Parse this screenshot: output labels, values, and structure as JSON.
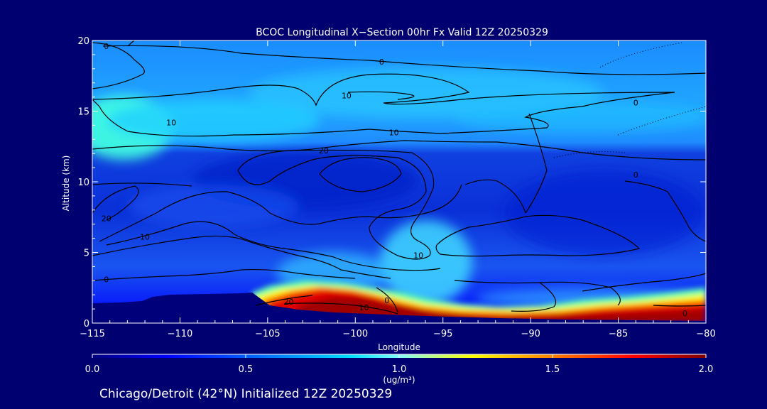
{
  "colors": {
    "background": "#000070",
    "text": "#ffffff",
    "contour": "#000000",
    "colormap": [
      "#00007f",
      "#0000ff",
      "#0080ff",
      "#00e0ff",
      "#80ffff",
      "#ffff00",
      "#ff8000",
      "#ff0000",
      "#800000"
    ]
  },
  "chart_data": {
    "type": "heatmap",
    "title": "BCOC Longitudinal X−Section 00hr  Fx Valid 12Z 20250329",
    "xlabel": "Longitude",
    "ylabel": "Altitude (km)",
    "xlim": [
      -115,
      -80
    ],
    "ylim": [
      0,
      20
    ],
    "x_ticks": [
      -115,
      -110,
      -105,
      -100,
      -95,
      -90,
      -85,
      -80
    ],
    "x_tick_labels": [
      "−115",
      "−110",
      "−105",
      "−100",
      "−95",
      "−90",
      "−85",
      "−80"
    ],
    "y_ticks": [
      0,
      5,
      10,
      15,
      20
    ],
    "y_tick_labels": [
      "0",
      "5",
      "10",
      "15",
      "20"
    ],
    "colorbar": {
      "ticks": [
        0.0,
        0.5,
        1.0,
        1.5,
        2.0
      ],
      "tick_labels": [
        "0.0",
        "0.5",
        "1.0",
        "1.5",
        "2.0"
      ],
      "units": "(ug/m³)",
      "range": [
        0,
        2
      ]
    },
    "grid": false,
    "contour_labels": [
      {
        "text": "0",
        "lon": -114.2,
        "alt": 19.6
      },
      {
        "text": "0",
        "lon": -98.5,
        "alt": 18.5
      },
      {
        "text": "10",
        "lon": -100.5,
        "alt": 16.1
      },
      {
        "text": "10",
        "lon": -110.5,
        "alt": 14.2
      },
      {
        "text": "10",
        "lon": -97.8,
        "alt": 13.5
      },
      {
        "text": "0",
        "lon": -84.0,
        "alt": 15.6
      },
      {
        "text": "20",
        "lon": -101.8,
        "alt": 12.2
      },
      {
        "text": "0",
        "lon": -84.0,
        "alt": 10.5
      },
      {
        "text": "20",
        "lon": -114.2,
        "alt": 7.4
      },
      {
        "text": "10",
        "lon": -112.0,
        "alt": 6.1
      },
      {
        "text": "10",
        "lon": -96.4,
        "alt": 4.8
      },
      {
        "text": "0",
        "lon": -114.2,
        "alt": 3.1
      },
      {
        "text": "20",
        "lon": -103.8,
        "alt": 1.5
      },
      {
        "text": "10",
        "lon": -99.5,
        "alt": 1.1
      },
      {
        "text": "0",
        "lon": -98.2,
        "alt": 1.6
      },
      {
        "text": "0",
        "lon": -81.2,
        "alt": 0.7
      }
    ]
  },
  "footer": {
    "caption": "Chicago/Detroit (42°N) Initialized 12Z 20250329"
  }
}
